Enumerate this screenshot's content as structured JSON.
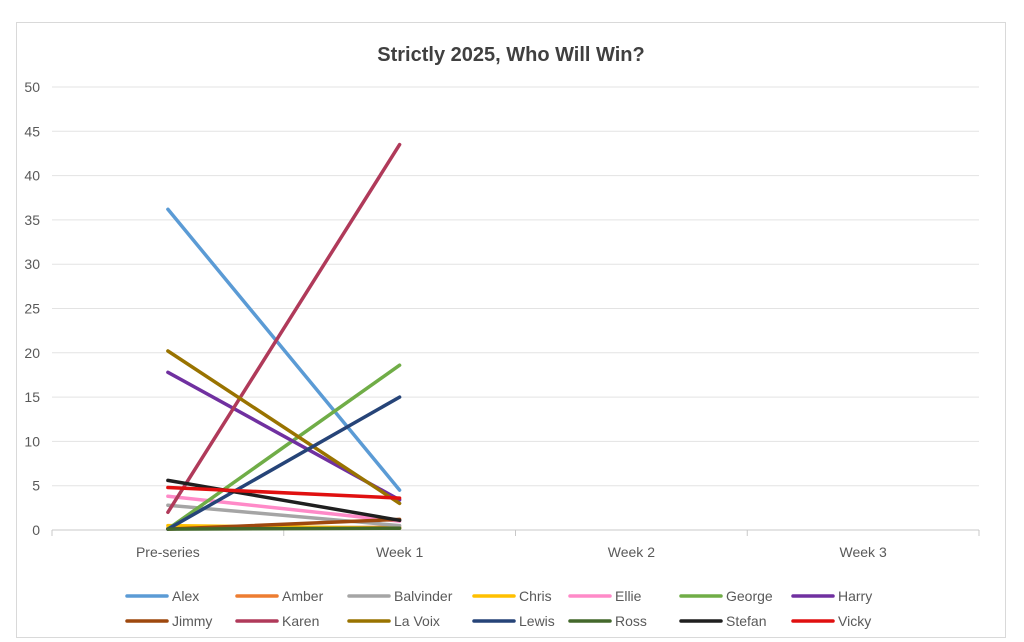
{
  "chart_data": {
    "type": "line",
    "title": "Strictly 2025, Who Will Win?",
    "xlabel": "",
    "ylabel": "",
    "categories": [
      "Pre-series",
      "Week 1",
      "Week 2",
      "Week 3"
    ],
    "ylim": [
      0,
      50
    ],
    "yticks": [
      0,
      5,
      10,
      15,
      20,
      25,
      30,
      35,
      40,
      45,
      50
    ],
    "grid": true,
    "legend_position": "bottom",
    "series": [
      {
        "name": "Alex",
        "color": "#5b9bd5",
        "values": [
          36.2,
          4.5,
          null,
          null
        ]
      },
      {
        "name": "Amber",
        "color": "#ed7d31",
        "values": [
          0.2,
          0.3,
          null,
          null
        ]
      },
      {
        "name": "Balvinder",
        "color": "#a5a5a5",
        "values": [
          2.8,
          0.5,
          null,
          null
        ]
      },
      {
        "name": "Chris",
        "color": "#ffc000",
        "values": [
          0.5,
          0.2,
          null,
          null
        ]
      },
      {
        "name": "Ellie",
        "color": "#ff8ac8",
        "values": [
          3.8,
          1.0,
          null,
          null
        ]
      },
      {
        "name": "George",
        "color": "#70ad47",
        "values": [
          0.1,
          18.6,
          null,
          null
        ]
      },
      {
        "name": "Harry",
        "color": "#7030a0",
        "values": [
          17.8,
          3.4,
          null,
          null
        ]
      },
      {
        "name": "Jimmy",
        "color": "#9e480e",
        "values": [
          0.1,
          1.2,
          null,
          null
        ]
      },
      {
        "name": "Karen",
        "color": "#b03a5a",
        "values": [
          2.0,
          43.5,
          null,
          null
        ]
      },
      {
        "name": "La Voix",
        "color": "#997300",
        "values": [
          20.2,
          3.0,
          null,
          null
        ]
      },
      {
        "name": "Lewis",
        "color": "#264478",
        "values": [
          0.1,
          15.0,
          null,
          null
        ]
      },
      {
        "name": "Ross",
        "color": "#43682b",
        "values": [
          0.1,
          0.2,
          null,
          null
        ]
      },
      {
        "name": "Stefan",
        "color": "#1f1f1f",
        "values": [
          5.6,
          1.1,
          null,
          null
        ]
      },
      {
        "name": "Vicky",
        "color": "#e01010",
        "values": [
          4.8,
          3.6,
          null,
          null
        ]
      }
    ]
  }
}
